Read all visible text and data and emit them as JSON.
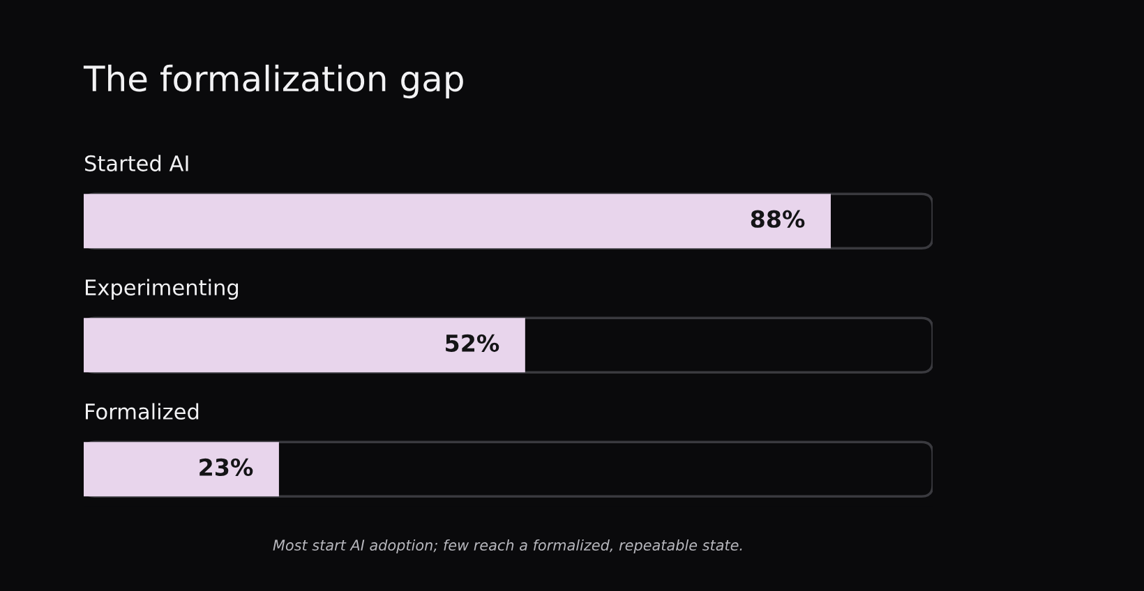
{
  "chart_data": {
    "type": "bar",
    "orientation": "horizontal",
    "title": "The formalization gap",
    "categories": [
      "Started AI",
      "Experimenting",
      "Formalized"
    ],
    "values": [
      88,
      52,
      23
    ],
    "color": "#e8d5ec",
    "data_labels": true,
    "value_labels": [
      "88%",
      "52%",
      "23%"
    ],
    "xlim": [
      0,
      100
    ],
    "annotations": [
      "Most start AI adoption; few reach a formalized, repeatable state."
    ]
  }
}
